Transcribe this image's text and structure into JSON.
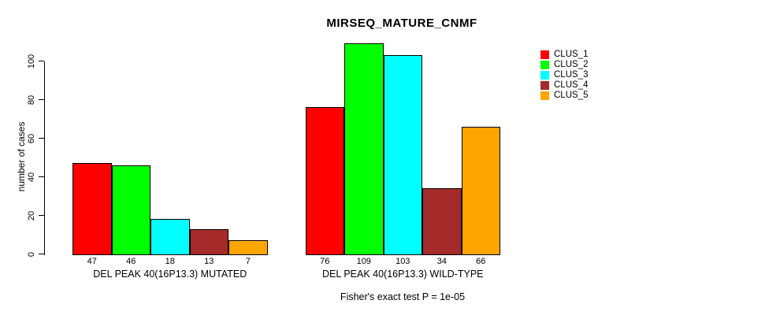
{
  "chart_data": {
    "type": "bar",
    "title": "MIRSEQ_MATURE_CNMF",
    "ylabel": "number of cases",
    "ylim": [
      0,
      100
    ],
    "yticks": [
      0,
      20,
      40,
      60,
      80,
      100
    ],
    "grid": false,
    "legend_position": "top-right",
    "background_color": "#FFFFFF",
    "axis_color": "#000000",
    "categories": [
      "DEL PEAK 40(16P13.3) MUTATED",
      "DEL PEAK 40(16P13.3) WILD-TYPE"
    ],
    "series": [
      {
        "name": "CLUS_1",
        "color": "#FF0000",
        "values": [
          47,
          76
        ]
      },
      {
        "name": "CLUS_2",
        "color": "#00FF00",
        "values": [
          46,
          109
        ]
      },
      {
        "name": "CLUS_3",
        "color": "#00FFFF",
        "values": [
          18,
          103
        ]
      },
      {
        "name": "CLUS_4",
        "color": "#A52A2A",
        "values": [
          13,
          34
        ]
      },
      {
        "name": "CLUS_5",
        "color": "#FFA500",
        "values": [
          7,
          66
        ]
      }
    ],
    "show_value_labels": true,
    "footnote": "Fisher's exact test P = 1e-05"
  }
}
